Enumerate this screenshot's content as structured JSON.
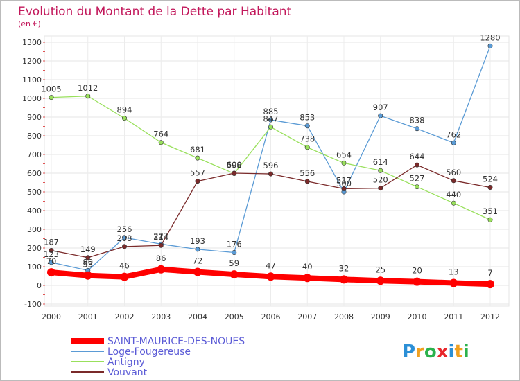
{
  "chart_data": {
    "type": "line",
    "title": "Evolution du Montant de la Dette par Habitant",
    "subtitle": "(en €)",
    "xlabel": "",
    "ylabel": "",
    "categories": [
      "2000",
      "2001",
      "2002",
      "2003",
      "2004",
      "2005",
      "2006",
      "2007",
      "2008",
      "2009",
      "2010",
      "2011",
      "2012"
    ],
    "ylim": [
      -100,
      1300
    ],
    "yticks": [
      -100,
      0,
      100,
      200,
      300,
      400,
      500,
      600,
      700,
      800,
      900,
      1000,
      1100,
      1200,
      1300
    ],
    "grid": true,
    "legend_position": "bottom-left",
    "series": [
      {
        "name": "SAINT-MAURICE-DES-NOUES",
        "color": "#ff0000",
        "values": [
          70,
          53,
          46,
          86,
          72,
          59,
          47,
          40,
          32,
          25,
          20,
          13,
          7
        ]
      },
      {
        "name": "Loge-Fougereuse",
        "color": "#5b9bd5",
        "values": [
          123,
          80,
          256,
          221,
          193,
          176,
          885,
          853,
          500,
          907,
          838,
          762,
          1280
        ]
      },
      {
        "name": "Antigny",
        "color": "#99e05c",
        "values": [
          1005,
          1012,
          894,
          764,
          681,
          598,
          847,
          738,
          654,
          614,
          527,
          440,
          351
        ]
      },
      {
        "name": "Vouvant",
        "color": "#7a2a2a",
        "values": [
          187,
          149,
          208,
          214,
          557,
          600,
          596,
          556,
          517,
          520,
          644,
          560,
          524
        ]
      }
    ]
  },
  "logo": {
    "text": "Proxiti"
  }
}
